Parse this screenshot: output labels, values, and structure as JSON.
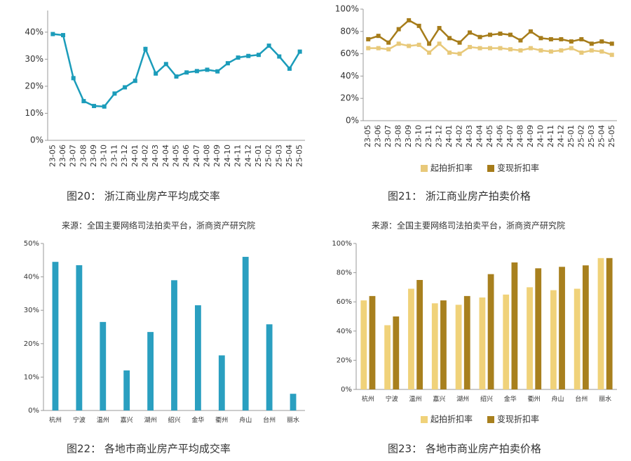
{
  "chart_data": [
    {
      "type": "line",
      "caption": "图20： 浙江商业房产平均成交率",
      "source": "来源：全国主要网络司法拍卖平台，浙商资产研究院",
      "categories": [
        "23-05",
        "23-06",
        "23-07",
        "23-08",
        "23-09",
        "23-10",
        "23-11",
        "23-12",
        "24-01",
        "24-02",
        "24-03",
        "24-04",
        "24-05",
        "24-06",
        "24-07",
        "24-08",
        "24-09",
        "24-10",
        "24-11",
        "24-12",
        "25-01",
        "25-02",
        "25-03",
        "25-04",
        "25-05"
      ],
      "values": [
        39.3,
        38.9,
        23,
        14.5,
        12.7,
        12.5,
        17.3,
        19.6,
        22,
        33.8,
        24.7,
        28.2,
        23.6,
        25.1,
        25.6,
        26.1,
        25.5,
        28.5,
        30.6,
        31.2,
        31.6,
        35,
        31,
        26.5,
        32.8
      ],
      "color": "#1b9cba",
      "ylim": [
        0,
        48
      ],
      "yticks": [
        {
          "value": 0,
          "label": "0%"
        },
        {
          "value": 10,
          "label": "10%"
        },
        {
          "value": 20,
          "label": "20%"
        },
        {
          "value": 30,
          "label": "30%"
        },
        {
          "value": 40,
          "label": "40%"
        }
      ]
    },
    {
      "type": "line",
      "caption": "图21： 浙江商业房产拍卖价格",
      "source": "来源：全国主要网络司法拍卖平台，浙商资产研究院",
      "categories": [
        "23-05",
        "23-06",
        "23-07",
        "23-08",
        "23-09",
        "23-10",
        "23-11",
        "23-12",
        "24-01",
        "24-02",
        "24-03",
        "24-04",
        "24-05",
        "24-06",
        "24-07",
        "24-08",
        "24-09",
        "24-10",
        "24-11",
        "24-12",
        "25-01",
        "25-02",
        "25-03",
        "25-04",
        "25-05"
      ],
      "series": [
        {
          "name": "起拍折扣率",
          "color": "#e8c97a",
          "values": [
            65,
            65,
            64,
            69,
            67,
            68,
            61,
            69,
            61,
            60,
            66,
            65,
            65,
            65,
            64,
            63,
            65,
            63,
            62,
            63,
            65,
            61,
            63,
            62,
            59
          ]
        },
        {
          "name": "变现折扣率",
          "color": "#a67c1a",
          "values": [
            73,
            76,
            70,
            82,
            90,
            85,
            69,
            83,
            74,
            70,
            79,
            75,
            77,
            78,
            77,
            72,
            80,
            74,
            73,
            73,
            71,
            73,
            69,
            71,
            69
          ]
        }
      ],
      "ylim": [
        0,
        100
      ],
      "yticks": [
        {
          "value": 0,
          "label": "0%"
        },
        {
          "value": 20,
          "label": "20%"
        },
        {
          "value": 40,
          "label": "40%"
        },
        {
          "value": 60,
          "label": "60%"
        },
        {
          "value": 80,
          "label": "80%"
        },
        {
          "value": 100,
          "label": "100%"
        }
      ]
    },
    {
      "type": "bar",
      "caption": "图22： 各地市商业房产平均成交率",
      "categories": [
        "杭州",
        "宁波",
        "温州",
        "嘉兴",
        "湖州",
        "绍兴",
        "金华",
        "衢州",
        "舟山",
        "台州",
        "丽水"
      ],
      "values": [
        44.5,
        43.5,
        26.5,
        12,
        23.5,
        39,
        31.5,
        16.5,
        46,
        25.8,
        5
      ],
      "color": "#2a9fc0",
      "ylim": [
        0,
        50
      ],
      "yticks": [
        {
          "value": 0,
          "label": "0%"
        },
        {
          "value": 10,
          "label": "10%"
        },
        {
          "value": 20,
          "label": "20%"
        },
        {
          "value": 30,
          "label": "30%"
        },
        {
          "value": 40,
          "label": "40%"
        },
        {
          "value": 50,
          "label": "50%"
        }
      ]
    },
    {
      "type": "bar",
      "caption": "图23： 各地市商业房产拍卖价格",
      "categories": [
        "杭州",
        "宁波",
        "温州",
        "嘉兴",
        "湖州",
        "绍兴",
        "金华",
        "衢州",
        "舟山",
        "台州",
        "丽水"
      ],
      "series": [
        {
          "name": "起拍折扣率",
          "color": "#f0d27a",
          "values": [
            61,
            44,
            69,
            59,
            58,
            63,
            65,
            70,
            68,
            69,
            90
          ]
        },
        {
          "name": "变现折扣率",
          "color": "#a8801e",
          "values": [
            64,
            50,
            75,
            61,
            64,
            79,
            87,
            83,
            84,
            85,
            90
          ]
        }
      ],
      "ylim": [
        0,
        100
      ],
      "yticks": [
        {
          "value": 0,
          "label": "0%"
        },
        {
          "value": 20,
          "label": "20%"
        },
        {
          "value": 40,
          "label": "40%"
        },
        {
          "value": 60,
          "label": "60%"
        },
        {
          "value": 80,
          "label": "80%"
        },
        {
          "value": 100,
          "label": "100%"
        }
      ]
    }
  ]
}
